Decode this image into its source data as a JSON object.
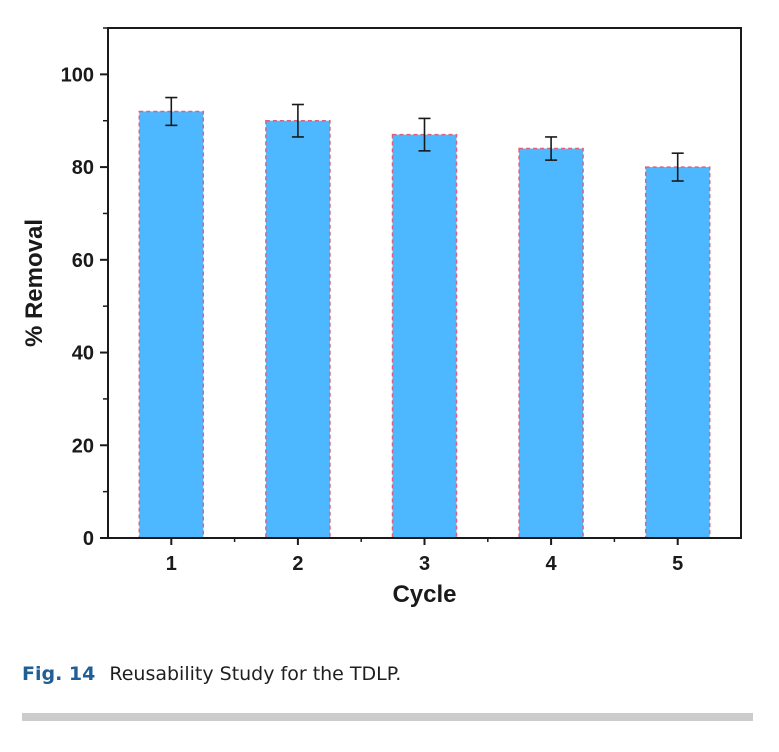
{
  "chart_data": {
    "type": "bar",
    "title": "",
    "xlabel": "Cycle",
    "ylabel": "% Removal",
    "categories": [
      "1",
      "2",
      "3",
      "4",
      "5"
    ],
    "values": [
      92,
      90,
      87,
      84,
      80
    ],
    "error": [
      3,
      3.5,
      3.5,
      2.5,
      3
    ],
    "ylim": [
      0,
      110
    ],
    "yticks": [
      0,
      20,
      40,
      60,
      80,
      100
    ],
    "grid": false,
    "colors": {
      "bar_fill": "#4db8ff",
      "bar_edge": "#e0607a",
      "axis": "#1a1a1a"
    }
  },
  "caption": {
    "label": "Fig. 14",
    "text": "Reusability Study for the TDLP."
  },
  "colors": {
    "caption_label": "#1f5f96",
    "rule": "#cccccc"
  }
}
